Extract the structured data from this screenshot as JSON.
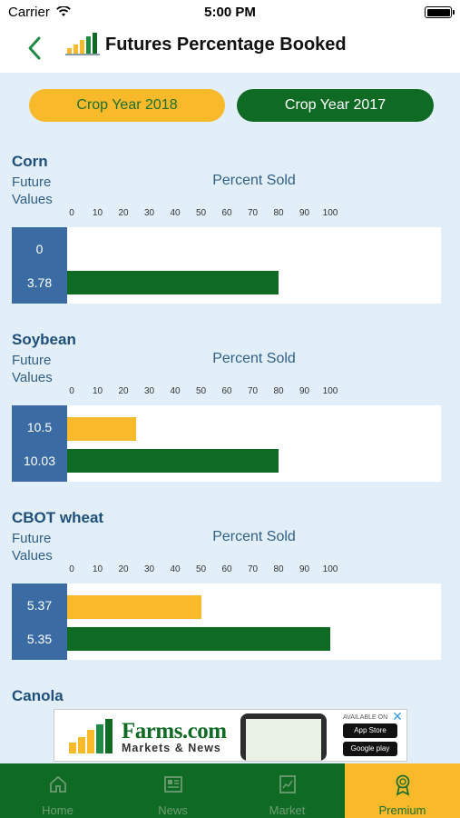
{
  "status": {
    "carrier": "Carrier",
    "time": "5:00 PM"
  },
  "header": {
    "title": "Futures Percentage Booked"
  },
  "tabs": {
    "crop_year_2018": "Crop Year 2018",
    "crop_year_2017": "Crop Year 2017"
  },
  "axis": {
    "label": "Percent Sold",
    "ticks": [
      "0",
      "10",
      "20",
      "30",
      "40",
      "50",
      "60",
      "70",
      "80",
      "90",
      "100"
    ]
  },
  "future_values_label": [
    "Future",
    "Values"
  ],
  "crops": [
    {
      "name": "Corn",
      "values": [
        "0",
        "3.78"
      ],
      "percent_sold": [
        0,
        80
      ]
    },
    {
      "name": "Soybean",
      "values": [
        "10.5",
        "10.03"
      ],
      "percent_sold": [
        25,
        80
      ]
    },
    {
      "name": "CBOT wheat",
      "values": [
        "5.37",
        "5.35"
      ],
      "percent_sold": [
        50,
        100
      ]
    },
    {
      "name": "Canola"
    }
  ],
  "ad": {
    "brand": "Farms.com",
    "tagline": "Markets & News",
    "available": "AVAILABLE ON",
    "app_store": "App Store",
    "google_play": "Google play"
  },
  "tabbar": {
    "home": "Home",
    "news": "News",
    "market": "Market",
    "premium": "Premium",
    "active": "premium"
  },
  "colors": {
    "gold": "#f8b92a",
    "green": "#0f6b24",
    "blue": "#3a6ca3",
    "background": "#e3eff8"
  },
  "chart_data": [
    {
      "type": "bar",
      "title": "Corn",
      "xlabel": "Percent Sold",
      "categories": [
        "0",
        "3.78"
      ],
      "values": [
        0,
        80
      ],
      "xlim": [
        0,
        100
      ]
    },
    {
      "type": "bar",
      "title": "Soybean",
      "xlabel": "Percent Sold",
      "categories": [
        "10.5",
        "10.03"
      ],
      "values": [
        25,
        80
      ],
      "xlim": [
        0,
        100
      ]
    },
    {
      "type": "bar",
      "title": "CBOT wheat",
      "xlabel": "Percent Sold",
      "categories": [
        "5.37",
        "5.35"
      ],
      "values": [
        50,
        100
      ],
      "xlim": [
        0,
        100
      ]
    }
  ]
}
